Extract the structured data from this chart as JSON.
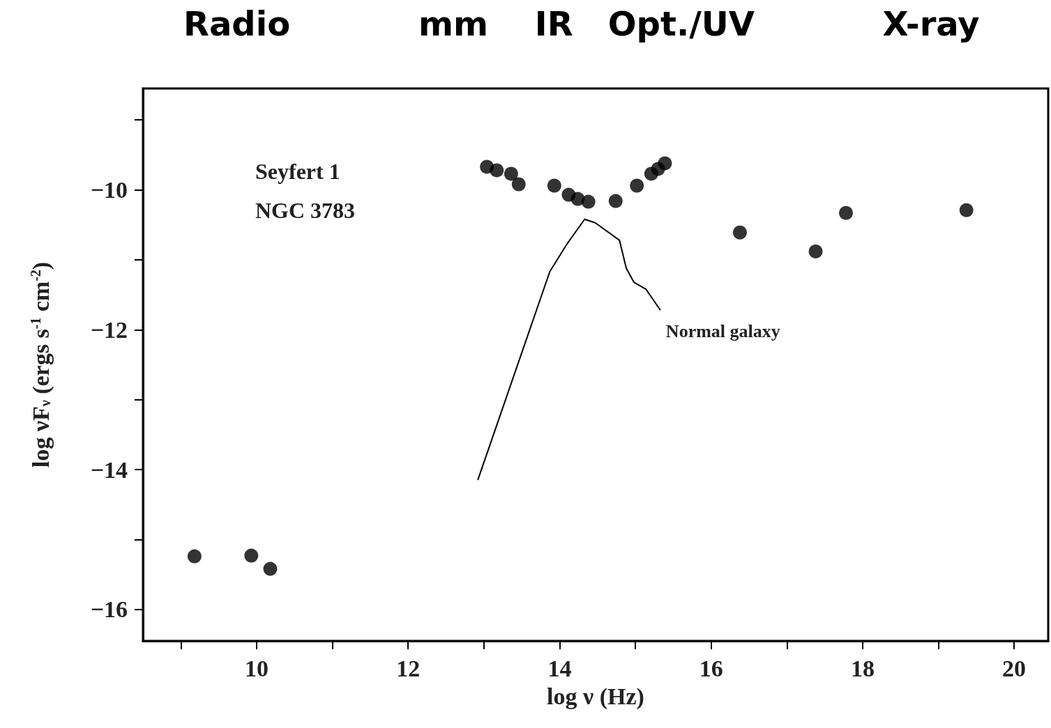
{
  "chart_data": {
    "type": "scatter",
    "xlabel": "log ν (Hz)",
    "ylabel": "log νF$_{ν}$ (ergs s$^{-1}$ cm$^{-2}$)",
    "title": "Radio           mm    IR   Opt./UV           X-ray",
    "annotations": [
      "Seyfert 1",
      "NGC 3783"
    ],
    "series": [
      {
        "color": "#000000",
        "x": [
          9.18,
          9.93,
          10.18,
          13.04,
          13.17,
          13.36,
          13.46,
          13.93,
          14.12,
          14.24,
          14.38,
          14.74,
          15.02,
          15.21,
          15.3,
          15.39,
          16.38,
          17.38,
          17.78,
          19.37
        ],
        "values": [
          -15.24,
          -15.23,
          -15.42,
          -9.67,
          -9.72,
          -9.77,
          -9.92,
          -9.94,
          -10.07,
          -10.13,
          -10.17,
          -10.16,
          -9.94,
          -9.77,
          -9.7,
          -9.62,
          -10.61,
          -10.88,
          -10.33,
          -10.29
        ]
      },
      {
        "type": "line",
        "name": "Normal galaxy",
        "color": "#000000",
        "marker": "none",
        "line_style": "solid",
        "x": [
          12.92,
          13.87,
          14.1,
          14.33,
          14.47,
          14.79,
          14.88,
          14.98,
          15.14,
          15.33
        ],
        "values": [
          -14.15,
          -11.17,
          -10.77,
          -10.42,
          -10.47,
          -10.72,
          -11.12,
          -11.32,
          -11.42,
          -11.72
        ]
      }
    ],
    "marker": "circle",
    "xlim": [
      8.5,
      20.45
    ],
    "ylim": [
      -16.45,
      -8.55
    ],
    "xticks": [
      {
        "value": 9,
        "label": null
      },
      10,
      {
        "value": 11,
        "label": null
      },
      12,
      {
        "value": 13,
        "label": null
      },
      14,
      {
        "value": 15,
        "label": null
      },
      16,
      {
        "value": 17,
        "label": null
      },
      18,
      {
        "value": 19,
        "label": null
      },
      20
    ],
    "yticks": [
      -16,
      {
        "value": -15,
        "label": null
      },
      -14,
      {
        "value": -13,
        "label": null
      },
      -12,
      {
        "value": -11,
        "label": null
      },
      -10,
      {
        "value": -9,
        "label": null
      }
    ],
    "grid": false,
    "legend": false
  }
}
